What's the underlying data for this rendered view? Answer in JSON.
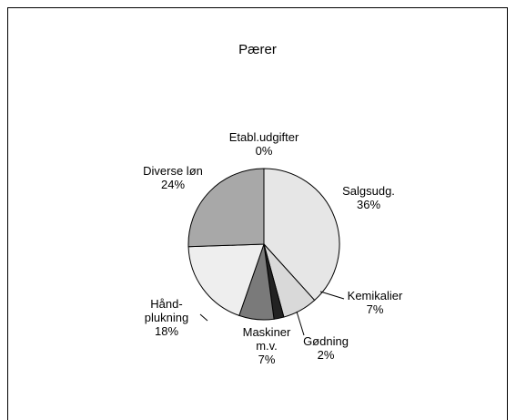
{
  "chart_data": {
    "type": "pie",
    "title": "Pærer",
    "categories": [
      "Etabl.udgifter",
      "Salgsudg.",
      "Kemikalier",
      "Gødning",
      "Maskiner\nm.v.",
      "Hånd-\nplukning",
      "Diverse løn"
    ],
    "values": [
      0,
      36,
      7,
      2,
      7,
      18,
      24
    ],
    "value_labels": [
      "0%",
      "36%",
      "7%",
      "2%",
      "7%",
      "18%",
      "24%"
    ],
    "colors": [
      "#ffffff",
      "#e6e6e6",
      "#d9d9d9",
      "#222222",
      "#7a7a7a",
      "#eeeeee",
      "#a8a8a8"
    ]
  }
}
